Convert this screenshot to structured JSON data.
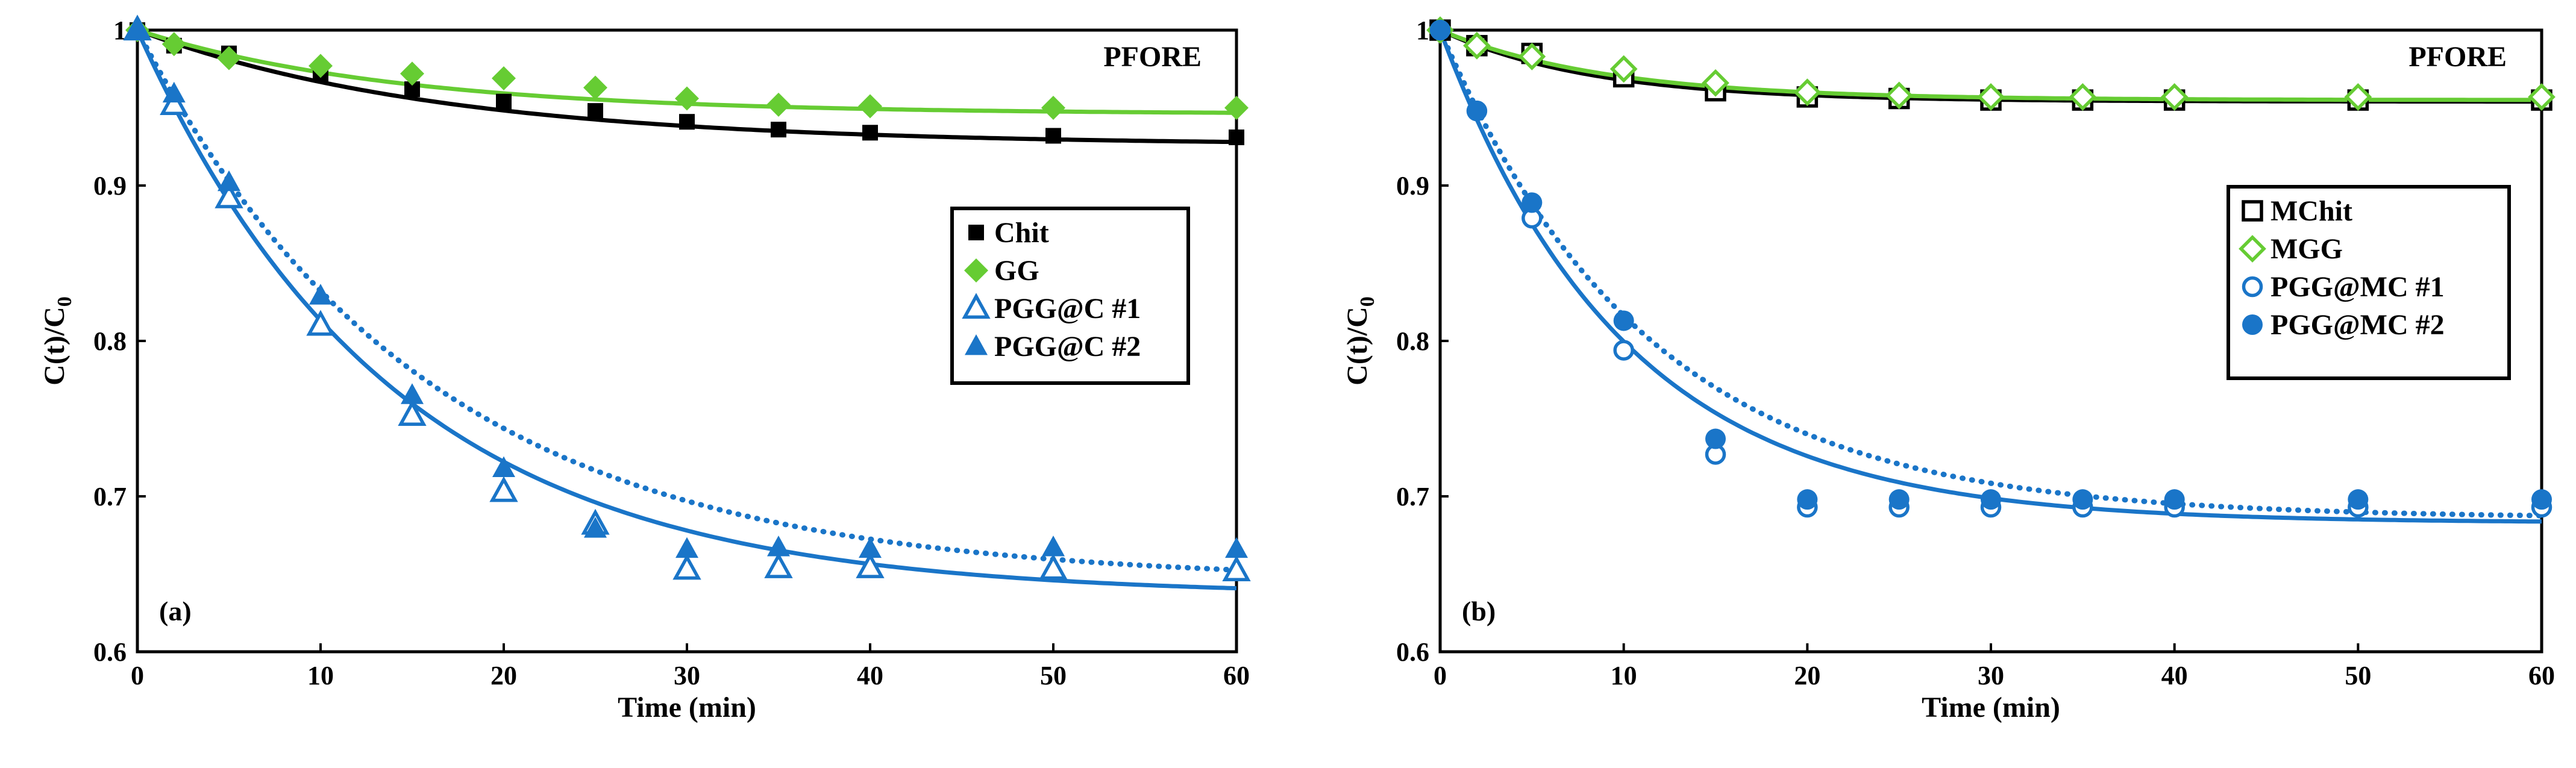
{
  "colors": {
    "black": "#000000",
    "green": "#66cc33",
    "blue": "#1a75c8"
  },
  "chart_data": [
    {
      "type": "scatter",
      "panel_label": "(a)",
      "title": "PFORE",
      "xlabel": "Time (min)",
      "ylabel_main": "C(t)/C",
      "ylabel_sub": "0",
      "xlim": [
        0,
        60
      ],
      "ylim": [
        0.6,
        1.0
      ],
      "xticks": [
        0,
        10,
        20,
        30,
        40,
        50,
        60
      ],
      "yticks": [
        0.6,
        0.7,
        0.8,
        0.9,
        1.0
      ],
      "ytick_labels": [
        "0.6",
        "0.7",
        "0.8",
        "0.9",
        "1"
      ],
      "legend_position": "center-right",
      "series": [
        {
          "name": "Chit",
          "marker": "square-filled",
          "color": "#000000",
          "x": [
            0,
            2,
            5,
            10,
            15,
            20,
            25,
            30,
            35,
            40,
            50,
            60
          ],
          "y": [
            1.0,
            0.99,
            0.985,
            0.972,
            0.962,
            0.954,
            0.948,
            0.941,
            0.936,
            0.934,
            0.932,
            0.931
          ],
          "fit": {
            "style": "solid",
            "c_inf": 0.926,
            "k": 0.06
          }
        },
        {
          "name": "GG",
          "marker": "diamond-filled",
          "color": "#66cc33",
          "x": [
            0,
            2,
            5,
            10,
            15,
            20,
            25,
            30,
            35,
            40,
            50,
            60
          ],
          "y": [
            1.0,
            0.991,
            0.982,
            0.977,
            0.972,
            0.969,
            0.963,
            0.956,
            0.952,
            0.951,
            0.95,
            0.95
          ],
          "fit": {
            "style": "solid",
            "c_inf": 0.946,
            "k": 0.07
          }
        },
        {
          "name": "PGG@C #1",
          "marker": "triangle-open",
          "color": "#1a75c8",
          "x": [
            0,
            2,
            5,
            10,
            15,
            20,
            25,
            30,
            35,
            40,
            50,
            60
          ],
          "y": [
            1.0,
            0.952,
            0.892,
            0.81,
            0.752,
            0.703,
            0.682,
            0.653,
            0.654,
            0.654,
            0.653,
            0.652
          ],
          "fit": {
            "style": "solid",
            "c_inf": 0.636,
            "k": 0.072
          }
        },
        {
          "name": "PGG@C #2",
          "marker": "triangle-filled",
          "color": "#1a75c8",
          "x": [
            0,
            2,
            5,
            10,
            15,
            20,
            25,
            30,
            35,
            40,
            50,
            60
          ],
          "y": [
            1.0,
            0.959,
            0.902,
            0.829,
            0.765,
            0.718,
            0.679,
            0.666,
            0.667,
            0.666,
            0.667,
            0.666
          ],
          "fit": {
            "style": "dotted",
            "c_inf": 0.645,
            "k": 0.064
          }
        }
      ]
    },
    {
      "type": "scatter",
      "panel_label": "(b)",
      "title": "PFORE",
      "xlabel": "Time (min)",
      "ylabel_main": "C(t)/C",
      "ylabel_sub": "0",
      "xlim": [
        0,
        60
      ],
      "ylim": [
        0.6,
        1.0
      ],
      "xticks": [
        0,
        10,
        20,
        30,
        40,
        50,
        60
      ],
      "yticks": [
        0.6,
        0.7,
        0.8,
        0.9,
        1.0
      ],
      "ytick_labels": [
        "0.6",
        "0.7",
        "0.8",
        "0.9",
        "1"
      ],
      "legend_position": "center-right",
      "series": [
        {
          "name": "MChit",
          "marker": "square-open",
          "color": "#000000",
          "x": [
            0,
            2,
            5,
            10,
            15,
            20,
            25,
            30,
            35,
            40,
            50,
            60
          ],
          "y": [
            1.0,
            0.99,
            0.985,
            0.97,
            0.961,
            0.957,
            0.956,
            0.955,
            0.955,
            0.955,
            0.955,
            0.955
          ],
          "fit": {
            "style": "solid",
            "c_inf": 0.954,
            "k": 0.12
          }
        },
        {
          "name": "MGG",
          "marker": "diamond-open",
          "color": "#66cc33",
          "x": [
            0,
            2,
            5,
            10,
            15,
            20,
            25,
            30,
            35,
            40,
            50,
            60
          ],
          "y": [
            1.0,
            0.99,
            0.983,
            0.975,
            0.966,
            0.96,
            0.958,
            0.957,
            0.957,
            0.957,
            0.957,
            0.957
          ],
          "fit": {
            "style": "solid",
            "c_inf": 0.955,
            "k": 0.11
          }
        },
        {
          "name": "PGG@MC #1",
          "marker": "circle-open",
          "color": "#1a75c8",
          "x": [
            0,
            2,
            5,
            10,
            15,
            20,
            25,
            30,
            35,
            40,
            50,
            60
          ],
          "y": [
            1.0,
            0.948,
            0.879,
            0.794,
            0.727,
            0.693,
            0.693,
            0.693,
            0.693,
            0.693,
            0.693,
            0.693
          ],
          "fit": {
            "style": "solid",
            "c_inf": 0.683,
            "k": 0.1
          }
        },
        {
          "name": "PGG@MC #2",
          "marker": "circle-filled",
          "color": "#1a75c8",
          "x": [
            0,
            2,
            5,
            10,
            15,
            20,
            25,
            30,
            35,
            40,
            50,
            60
          ],
          "y": [
            1.0,
            0.948,
            0.889,
            0.813,
            0.737,
            0.698,
            0.698,
            0.698,
            0.698,
            0.698,
            0.698,
            0.698
          ],
          "fit": {
            "style": "dotted",
            "c_inf": 0.686,
            "k": 0.088
          }
        }
      ]
    }
  ]
}
